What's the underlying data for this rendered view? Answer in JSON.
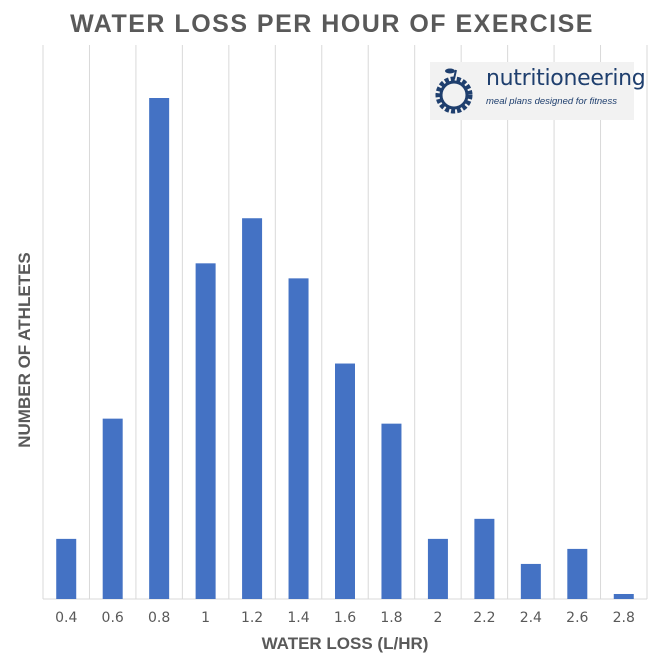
{
  "chart_data": {
    "type": "bar",
    "title": "WATER LOSS PER HOUR OF EXERCISE",
    "xlabel": "WATER LOSS (L/HR)",
    "ylabel": "NUMBER OF ATHLETES",
    "categories": [
      "0.4",
      "0.6",
      "0.8",
      "1",
      "1.2",
      "1.4",
      "1.6",
      "1.8",
      "2",
      "2.2",
      "2.4",
      "2.6",
      "2.8"
    ],
    "values": [
      12,
      36,
      100,
      67,
      76,
      64,
      47,
      35,
      12,
      16,
      7,
      10,
      1
    ],
    "ylim": [
      0,
      110
    ],
    "y_ticks_shown": false,
    "grid": "vertical",
    "bar_color": "#4472c4"
  },
  "logo": {
    "name": "nutritioneering",
    "tagline": "meal plans designed for fitness",
    "color": "#1f3f6e"
  }
}
